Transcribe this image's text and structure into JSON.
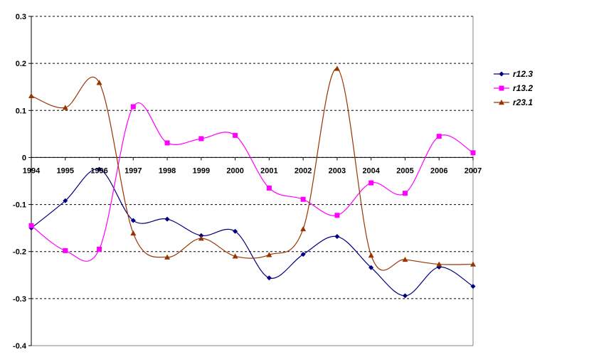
{
  "chart_data": {
    "type": "line",
    "smooth": true,
    "x": [
      "1994",
      "1995",
      "1996",
      "1997",
      "1998",
      "1999",
      "2000",
      "2001",
      "2002",
      "2003",
      "2004",
      "2005",
      "2006",
      "2007"
    ],
    "ylim": [
      -0.4,
      0.3
    ],
    "yticks": [
      0.3,
      0.2,
      0.1,
      0,
      -0.1,
      -0.2,
      -0.3,
      -0.4
    ],
    "ytick_labels": [
      "0.3",
      "0.2",
      "0.1",
      "0",
      "-0.1",
      "-0.2",
      "-0.3",
      "-0.4"
    ],
    "grid": "horizontal dashed",
    "legend_position": "right",
    "xaxis_at": 0,
    "title": "",
    "xlabel": "",
    "ylabel": "",
    "series": [
      {
        "name": "r12.3",
        "color": "#000080",
        "marker": "diamond",
        "values": [
          -0.15,
          -0.092,
          -0.025,
          -0.134,
          -0.131,
          -0.166,
          -0.157,
          -0.256,
          -0.206,
          -0.168,
          -0.234,
          -0.294,
          -0.233,
          -0.274
        ]
      },
      {
        "name": "r13.2",
        "color": "#ff00ff",
        "marker": "square",
        "values": [
          -0.145,
          -0.198,
          -0.195,
          0.108,
          0.031,
          0.04,
          0.047,
          -0.065,
          -0.089,
          -0.123,
          -0.054,
          -0.076,
          0.045,
          0.01
        ]
      },
      {
        "name": "r23.1",
        "color": "#993300",
        "marker": "triangle",
        "values": [
          0.131,
          0.106,
          0.159,
          -0.161,
          -0.212,
          -0.172,
          -0.21,
          -0.207,
          -0.152,
          0.189,
          -0.208,
          -0.217,
          -0.227,
          -0.227
        ]
      }
    ]
  }
}
